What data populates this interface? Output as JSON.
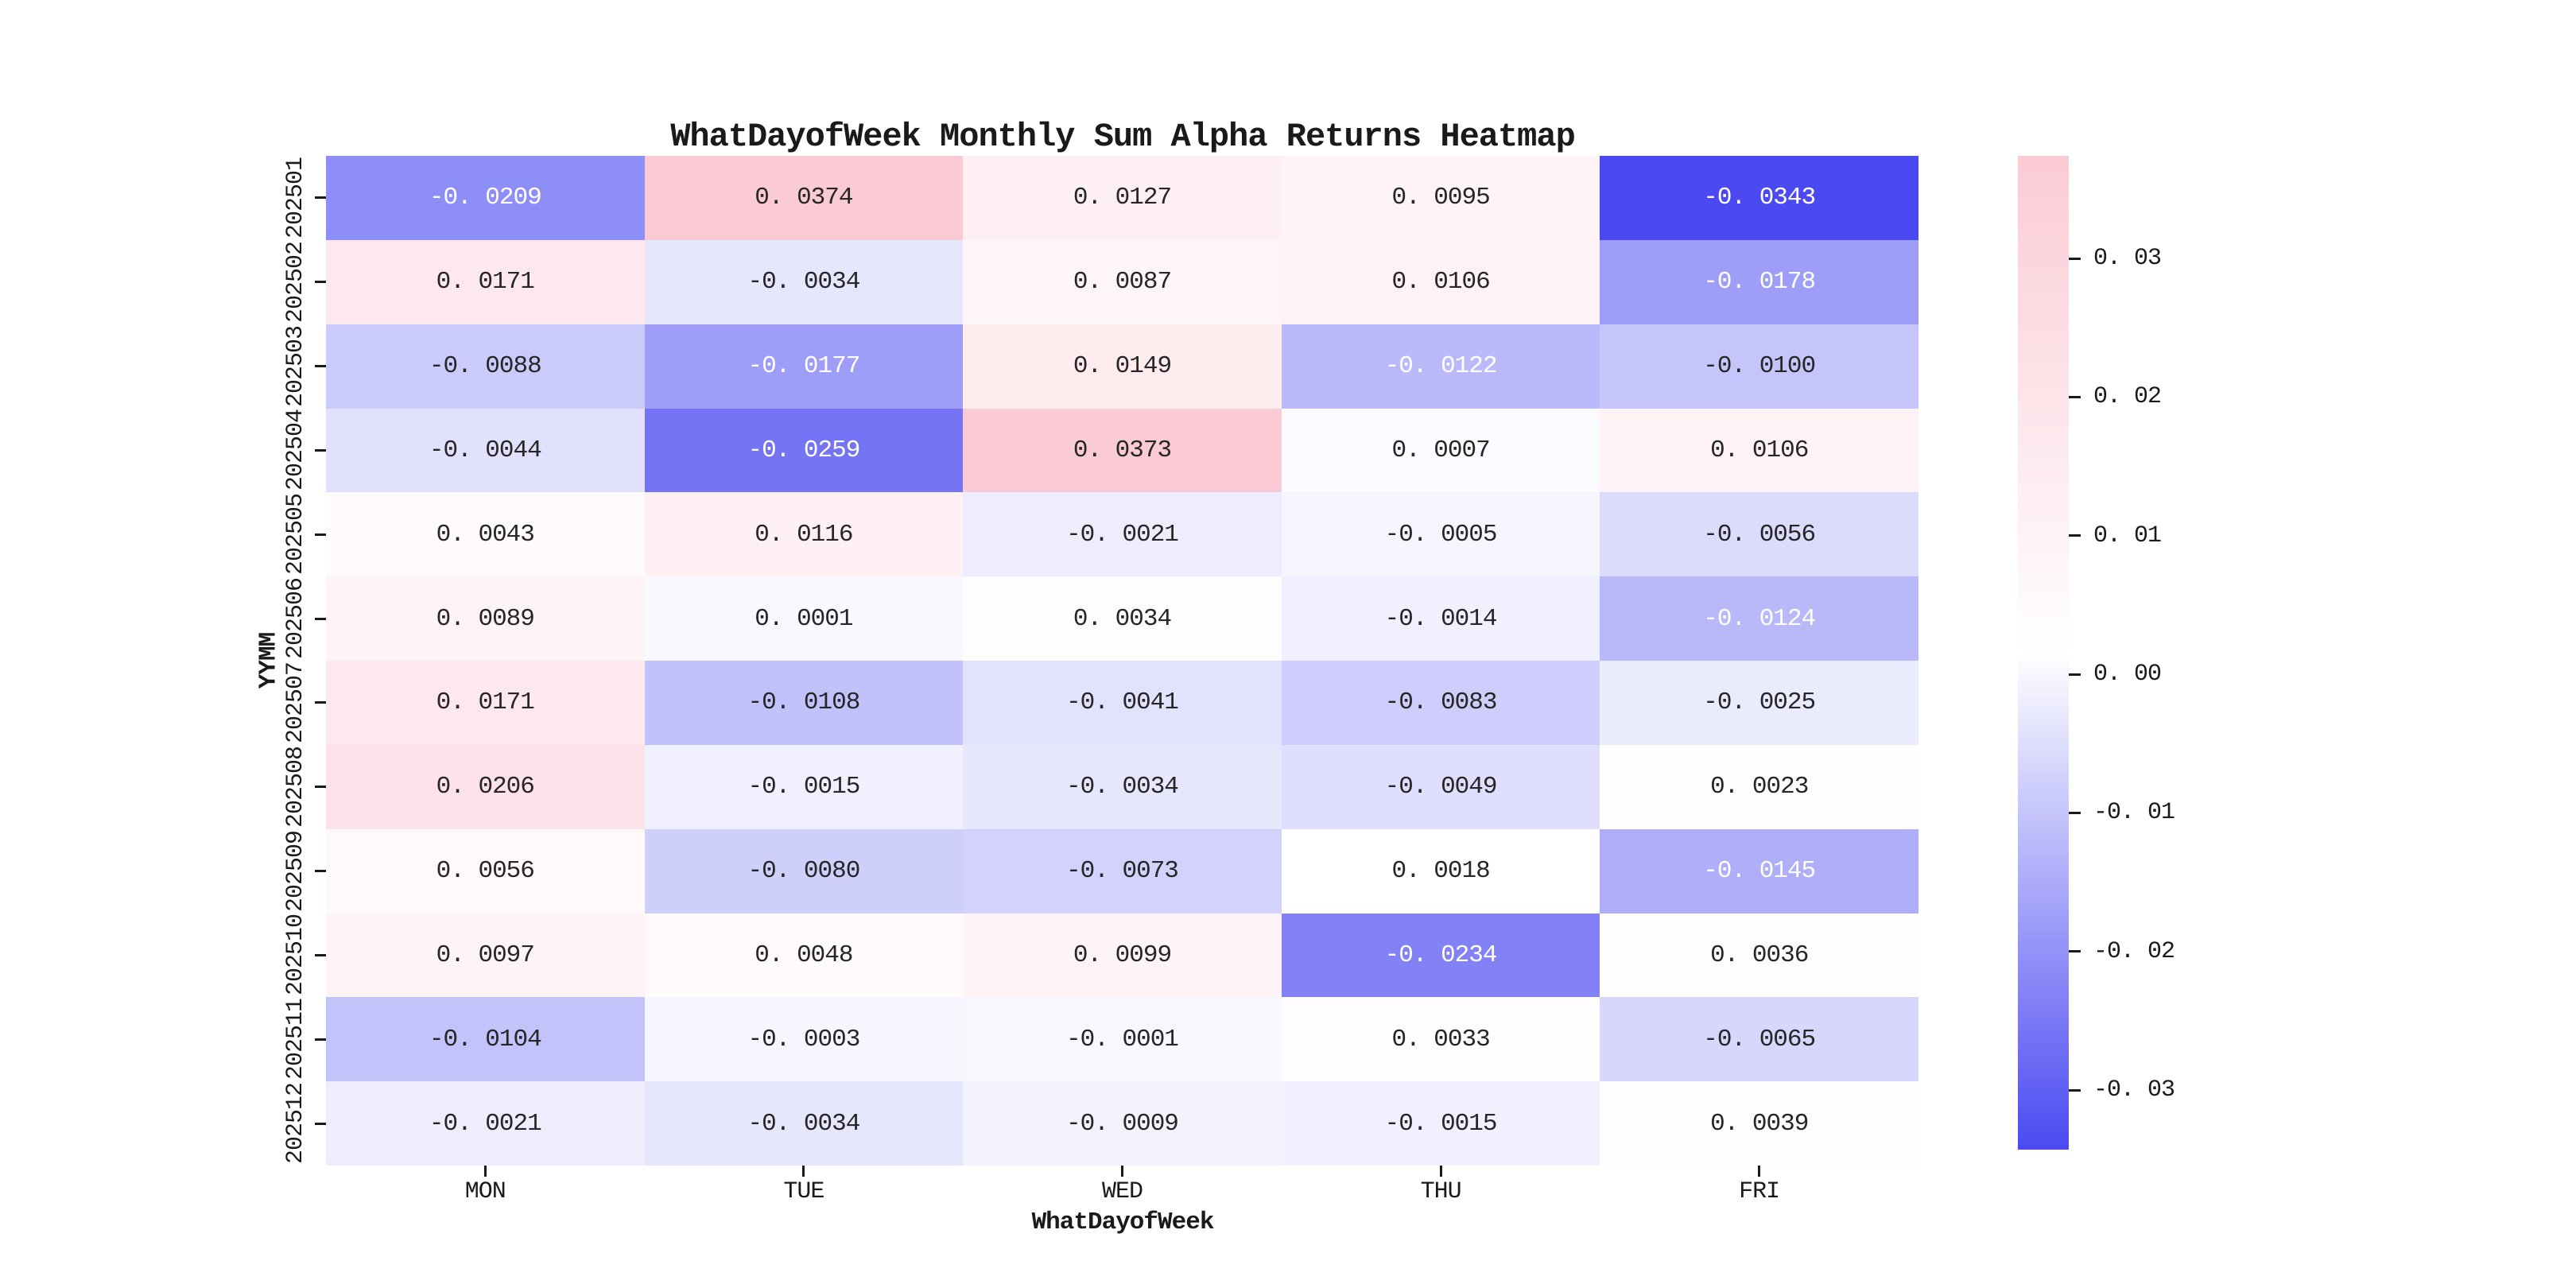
{
  "chart_data": {
    "type": "heatmap",
    "title": "WhatDayofWeek Monthly Sum Alpha Returns Heatmap",
    "xlabel": "WhatDayofWeek",
    "ylabel": "YYMM",
    "columns": [
      "MON",
      "TUE",
      "WED",
      "THU",
      "FRI"
    ],
    "rows": [
      "202501",
      "202502",
      "202503",
      "202504",
      "202505",
      "202506",
      "202507",
      "202508",
      "202509",
      "202510",
      "202511",
      "202512"
    ],
    "values": [
      [
        -0.0209,
        0.0374,
        0.0127,
        0.0095,
        -0.0343
      ],
      [
        0.0171,
        -0.0034,
        0.0087,
        0.0106,
        -0.0178
      ],
      [
        -0.0088,
        -0.0177,
        0.0149,
        -0.0122,
        -0.01
      ],
      [
        -0.0044,
        -0.0259,
        0.0373,
        0.0007,
        0.0106
      ],
      [
        0.0043,
        0.0116,
        -0.0021,
        -0.0005,
        -0.0056
      ],
      [
        0.0089,
        0.0001,
        0.0034,
        -0.0014,
        -0.0124
      ],
      [
        0.0171,
        -0.0108,
        -0.0041,
        -0.0083,
        -0.0025
      ],
      [
        0.0206,
        -0.0015,
        -0.0034,
        -0.0049,
        0.0023
      ],
      [
        0.0056,
        -0.008,
        -0.0073,
        0.0018,
        -0.0145
      ],
      [
        0.0097,
        0.0048,
        0.0099,
        -0.0234,
        0.0036
      ],
      [
        -0.0104,
        -0.0003,
        -0.0001,
        0.0033,
        -0.0065
      ],
      [
        -0.0021,
        -0.0034,
        -0.0009,
        -0.0015,
        0.0039
      ]
    ],
    "vmin": -0.0343,
    "vmax": 0.0374,
    "colorbar_ticks": [
      0.03,
      0.02,
      0.01,
      0.0,
      -0.01,
      -0.02,
      -0.03
    ],
    "colors": {
      "negative_end": "#4B4AF2",
      "center": "#FFFFFF",
      "positive_end": "#FBCBD5",
      "annotation_dark": "#262626",
      "annotation_light": "#FFFFFF",
      "axis_text": "#1A1A1A"
    },
    "legend_position": "right-colorbar",
    "grid": false
  }
}
